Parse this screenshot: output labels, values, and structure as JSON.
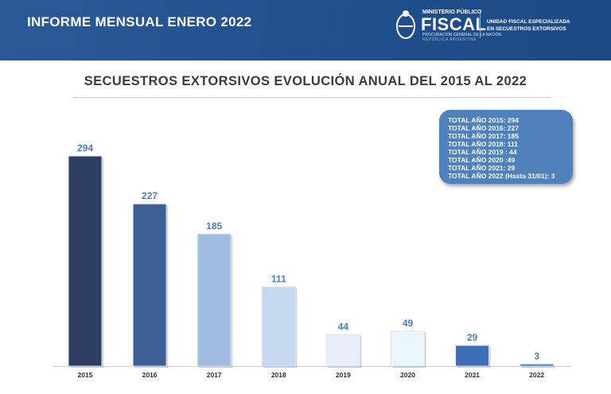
{
  "header": {
    "title": "INFORME MENSUAL ENERO 2022",
    "logo": {
      "ministerio": "MINISTERIO PÚBLICO",
      "fiscal": "FISCAL",
      "procuracion": "PROCURACIÓN GENERAL DE LA NACIÓN",
      "republica": "REPÚBLICA ARGENTINA"
    },
    "unit_line1": "UNIDAD FISCAL ESPECIALIZADA",
    "unit_line2": "EN SECUESTROS EXTORSIVOS"
  },
  "summary_box": [
    "TOTAL AÑO 2015: 294",
    "TOTAL AÑO 2016: 227",
    "TOTAL AÑO 2017: 185",
    "TOTAL AÑO 2018: 111",
    "TOTAL AÑO 2019 : 44",
    "TOTAL AÑO 2020 :49",
    "TOTAL AÑO 2021: 29",
    "TOTAL AÑO 2022 (Hasta 31/01): 3"
  ],
  "chart_data": {
    "type": "bar",
    "title": "SECUESTROS EXTORSIVOS EVOLUCIÓN ANUAL DEL 2015 AL 2022",
    "categories": [
      "2015",
      "2016",
      "2017",
      "2018",
      "2019",
      "2020",
      "2021",
      "2022"
    ],
    "values": [
      294,
      227,
      185,
      111,
      44,
      49,
      29,
      3
    ],
    "colors": [
      "#2c3f62",
      "#3e5f96",
      "#a0bce4",
      "#c6d8f0",
      "#e8effb",
      "#e9f6fb",
      "#3f6db6",
      "#4a78bf"
    ],
    "label_color": "#4f7ec0",
    "ylim": [
      0,
      294
    ],
    "grid": false,
    "legend": "none"
  }
}
